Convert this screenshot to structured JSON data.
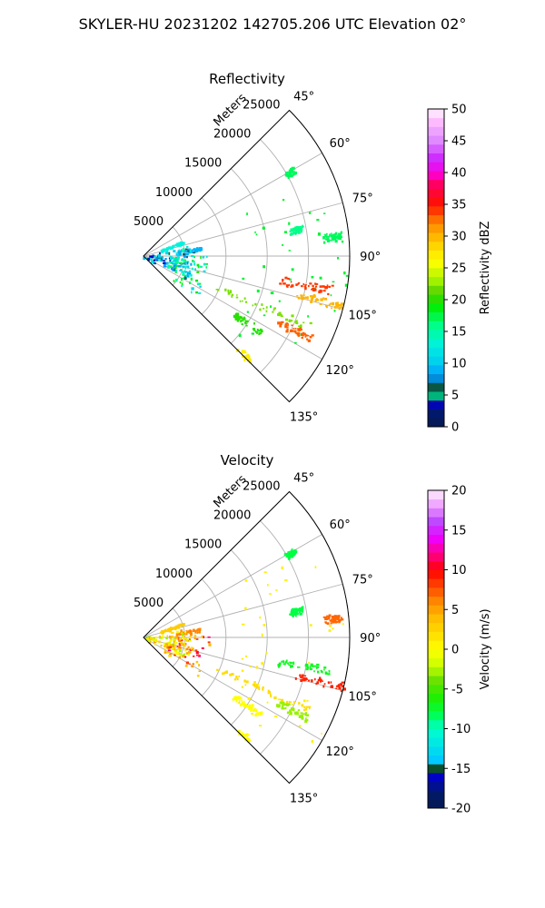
{
  "figure": {
    "title": "SKYLER-HU  20231202  142705.206 UTC Elevation 02°"
  },
  "colors": {
    "grid": "#b0b0b0",
    "axis": "#000000"
  },
  "chart_data": [
    {
      "type": "heatmap",
      "projection": "polar-sector",
      "title": "Reflectivity",
      "range_label": "Meters",
      "range_max": 25000,
      "range_ticks": [
        5000,
        10000,
        15000,
        20000,
        25000
      ],
      "azimuth_range": [
        45,
        135
      ],
      "azimuth_ticks": [
        45,
        60,
        75,
        90,
        105,
        120,
        135
      ],
      "grid": true,
      "colorbar": {
        "label": "Reflectivity dBZ",
        "min": 0,
        "max": 50,
        "ticks": [
          0,
          5,
          10,
          15,
          20,
          25,
          30,
          35,
          40,
          45,
          50
        ],
        "levels": [
          "#001c66",
          "#002f86",
          "#003fb0",
          "#0000e6",
          "#2a2aff",
          "#1a6a3a",
          "#0f4f2a",
          "#0a3a1e",
          "#00c8ff",
          "#00e6e6",
          "#00ffcc",
          "#00ff99",
          "#00ff66",
          "#33ff33",
          "#66ff00",
          "#55d800",
          "#44b800",
          "#99ee00",
          "#ccff00",
          "#ffff00",
          "#ffee00",
          "#ffcc00",
          "#ffaa00",
          "#ff8800",
          "#ff5500",
          "#ff0000",
          "#e60000",
          "#ff0066",
          "#ff00cc",
          "#dd00ff",
          "#bb33ff",
          "#cc66ff",
          "#dd88ff",
          "#ee99ff",
          "#ffbbff",
          "#ffd6ff",
          "#fff0ff"
        ],
        "stops": [
          [
            0,
            "#061a52"
          ],
          [
            2,
            "#001a66"
          ],
          [
            4,
            "#0000cc"
          ],
          [
            5,
            "#00d26e"
          ],
          [
            6,
            "#0a4f2a"
          ],
          [
            8,
            "#0099ff"
          ],
          [
            10,
            "#00ccee"
          ],
          [
            13,
            "#00f2dd"
          ],
          [
            16,
            "#00ff88"
          ],
          [
            19,
            "#00ee00"
          ],
          [
            21,
            "#4fd000"
          ],
          [
            23,
            "#a4f200"
          ],
          [
            26,
            "#ffff00"
          ],
          [
            29,
            "#ffcc00"
          ],
          [
            32,
            "#ff8800"
          ],
          [
            35,
            "#ff1100"
          ],
          [
            38,
            "#ff0055"
          ],
          [
            40,
            "#ff00dd"
          ],
          [
            42,
            "#cc22ff"
          ],
          [
            45,
            "#dd88ff"
          ],
          [
            48,
            "#ffbbff"
          ],
          [
            50,
            "#fff4ff"
          ]
        ]
      },
      "echoes": [
        {
          "az": 90,
          "r0": 12000,
          "r1": 25000,
          "value": 18,
          "kind": "spokes"
        },
        {
          "az": 100,
          "r0": 16500,
          "r1": 23000,
          "value": 34,
          "kind": "streak"
        },
        {
          "az": 104,
          "r0": 19000,
          "r1": 25000,
          "value": 30,
          "kind": "streak"
        },
        {
          "az": 113,
          "r0": 9500,
          "r1": 22000,
          "value": 22,
          "kind": "streak"
        },
        {
          "az": 116,
          "r0": 18000,
          "r1": 22500,
          "value": 33,
          "kind": "streak"
        },
        {
          "az": 123,
          "r0": 13000,
          "r1": 17000,
          "value": 20,
          "kind": "streak"
        },
        {
          "az": 135,
          "r0": 16000,
          "r1": 18000,
          "value": 27,
          "kind": "streak"
        },
        {
          "az": 60,
          "r0": 20000,
          "r1": 21000,
          "value": 17,
          "kind": "streak"
        },
        {
          "az": 80,
          "r0": 18000,
          "r1": 19500,
          "value": 16,
          "kind": "streak"
        },
        {
          "az": 84,
          "r0": 22000,
          "r1": 24000,
          "value": 17,
          "kind": "streak"
        },
        {
          "az": 82,
          "r0": 4000,
          "r1": 7000,
          "value": 9,
          "kind": "streak"
        },
        {
          "az": 70,
          "r0": 2000,
          "r1": 5000,
          "value": 13,
          "kind": "streak"
        },
        {
          "az": 100,
          "r0": 0,
          "r1": 4000,
          "value": 8,
          "kind": "cluster"
        },
        {
          "az": 108,
          "r0": 3000,
          "r1": 8000,
          "value": 15,
          "kind": "cluster"
        },
        {
          "az": 96,
          "r0": 3500,
          "r1": 6000,
          "value": 11,
          "kind": "cluster"
        }
      ]
    },
    {
      "type": "heatmap",
      "projection": "polar-sector",
      "title": "Velocity",
      "range_label": "Meters",
      "range_max": 25000,
      "range_ticks": [
        5000,
        10000,
        15000,
        20000,
        25000
      ],
      "azimuth_range": [
        45,
        135
      ],
      "azimuth_ticks": [
        45,
        60,
        75,
        90,
        105,
        120,
        135
      ],
      "grid": true,
      "colorbar": {
        "label": "Velocity (m/s)",
        "min": -20,
        "max": 20,
        "ticks": [
          -20,
          -15,
          -10,
          -5,
          0,
          5,
          10,
          15,
          20
        ],
        "levels": [
          "#001c66",
          "#002f86",
          "#003fb0",
          "#0000e6",
          "#2a2aff",
          "#1a6a3a",
          "#0f4f2a",
          "#0a3a1e",
          "#00c8ff",
          "#00e6e6",
          "#00ffcc",
          "#00ff99",
          "#00ff66",
          "#33ff33",
          "#66ff00",
          "#55d800",
          "#44b800",
          "#99ee00",
          "#ccff00",
          "#ffff00",
          "#ffee00",
          "#ffcc00",
          "#ffaa00",
          "#ff8800",
          "#ff5500",
          "#ff0000",
          "#e60000",
          "#ff0066",
          "#ff00cc",
          "#dd00ff",
          "#bb33ff",
          "#cc66ff",
          "#dd88ff",
          "#ee99ff",
          "#ffbbff",
          "#ffd6ff",
          "#fff0ff"
        ],
        "stops": [
          [
            -20,
            "#061a52"
          ],
          [
            -18,
            "#001a66"
          ],
          [
            -16,
            "#0000cc"
          ],
          [
            -15,
            "#0a4f2a"
          ],
          [
            -14,
            "#00c8ff"
          ],
          [
            -12,
            "#00e6e6"
          ],
          [
            -10,
            "#00ffcc"
          ],
          [
            -8,
            "#00ff44"
          ],
          [
            -6,
            "#22ee00"
          ],
          [
            -4,
            "#66e000"
          ],
          [
            -2,
            "#ccff00"
          ],
          [
            0,
            "#ffff00"
          ],
          [
            2,
            "#ffdd00"
          ],
          [
            4,
            "#ffbb00"
          ],
          [
            6,
            "#ff8800"
          ],
          [
            8,
            "#ff4400"
          ],
          [
            10,
            "#ff0000"
          ],
          [
            12,
            "#ff0088"
          ],
          [
            14,
            "#ee00ff"
          ],
          [
            16,
            "#bb44ff"
          ],
          [
            18,
            "#ee99ff"
          ],
          [
            20,
            "#fff0ff"
          ]
        ]
      },
      "echoes": [
        {
          "az": 90,
          "r0": 12000,
          "r1": 25000,
          "value": 1,
          "kind": "spokes"
        },
        {
          "az": 100,
          "r0": 16500,
          "r1": 23000,
          "value": -7,
          "kind": "streak"
        },
        {
          "az": 104,
          "r0": 19000,
          "r1": 25000,
          "value": 9,
          "kind": "streak"
        },
        {
          "az": 113,
          "r0": 9500,
          "r1": 22000,
          "value": 2,
          "kind": "streak"
        },
        {
          "az": 116,
          "r0": 18000,
          "r1": 22500,
          "value": -3,
          "kind": "streak"
        },
        {
          "az": 123,
          "r0": 13000,
          "r1": 17000,
          "value": 0,
          "kind": "streak"
        },
        {
          "az": 135,
          "r0": 16000,
          "r1": 18000,
          "value": 0,
          "kind": "streak"
        },
        {
          "az": 60,
          "r0": 20000,
          "r1": 21000,
          "value": -8,
          "kind": "streak"
        },
        {
          "az": 80,
          "r0": 18000,
          "r1": 19500,
          "value": -8,
          "kind": "streak"
        },
        {
          "az": 84,
          "r0": 22000,
          "r1": 24000,
          "value": 7,
          "kind": "streak"
        },
        {
          "az": 82,
          "r0": 4000,
          "r1": 7000,
          "value": 6,
          "kind": "streak"
        },
        {
          "az": 70,
          "r0": 2000,
          "r1": 5000,
          "value": 3,
          "kind": "streak"
        },
        {
          "az": 100,
          "r0": 0,
          "r1": 4000,
          "value": 1,
          "kind": "cluster"
        },
        {
          "az": 108,
          "r0": 3000,
          "r1": 8000,
          "value": 7,
          "kind": "cluster"
        },
        {
          "az": 96,
          "r0": 3500,
          "r1": 6000,
          "value": 2,
          "kind": "cluster"
        }
      ]
    }
  ]
}
